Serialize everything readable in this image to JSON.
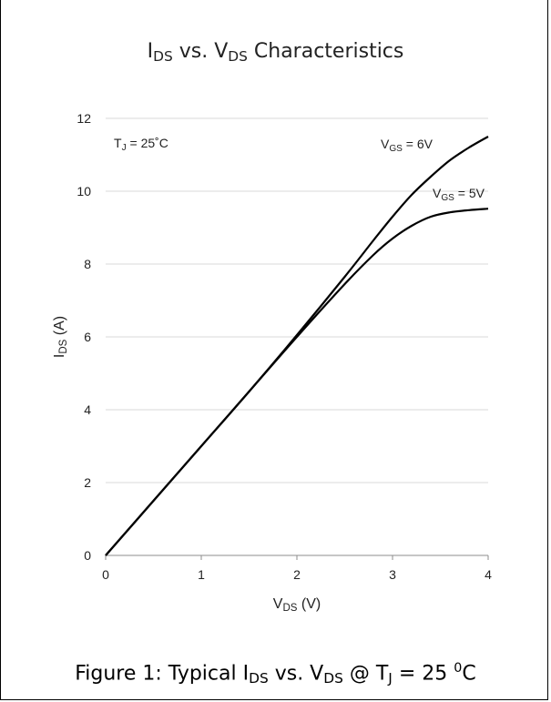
{
  "chart_data": {
    "type": "line",
    "title": {
      "main": "I",
      "sub1": "DS",
      "mid": " vs. V",
      "sub2": "DS",
      "tail": " Characteristics"
    },
    "xlabel": {
      "main": "V",
      "sub": "DS",
      "tail": " (V)"
    },
    "ylabel": {
      "main": "I",
      "sub": "DS",
      "tail": " (A)"
    },
    "xlim": [
      0,
      4
    ],
    "ylim": [
      0,
      12
    ],
    "x_ticks": [
      0,
      1,
      2,
      3,
      4
    ],
    "y_ticks": [
      0,
      2,
      4,
      6,
      8,
      10,
      12
    ],
    "grid": "horizontal",
    "annotation": {
      "main": "T",
      "sub": "J",
      "tail": " = 25˚C"
    },
    "series": [
      {
        "name": "VGS = 6V",
        "label": {
          "main": "V",
          "sub": "GS",
          "tail": " = 6V"
        },
        "x": [
          0,
          0.5,
          1.0,
          1.5,
          2.0,
          2.5,
          2.8,
          3.0,
          3.2,
          3.4,
          3.6,
          3.8,
          4.0
        ],
        "y": [
          0,
          1.5,
          3.0,
          4.5,
          6.05,
          7.65,
          8.65,
          9.3,
          9.9,
          10.4,
          10.85,
          11.2,
          11.5
        ]
      },
      {
        "name": "VGS = 5V",
        "label": {
          "main": "V",
          "sub": "GS",
          "tail": " = 5V"
        },
        "x": [
          0,
          0.5,
          1.0,
          1.5,
          2.0,
          2.5,
          2.8,
          3.0,
          3.2,
          3.4,
          3.6,
          3.8,
          4.0
        ],
        "y": [
          0,
          1.5,
          3.0,
          4.5,
          6.0,
          7.45,
          8.25,
          8.7,
          9.05,
          9.3,
          9.42,
          9.48,
          9.52
        ]
      }
    ]
  },
  "caption": {
    "prefix": "Figure 1: Typical I",
    "sub1": "DS",
    "mid": " vs. V",
    "sub2": "DS",
    "mid2": " @ T",
    "sub3": "J",
    "temp": " = 25 ",
    "sup": "0",
    "unit": "C"
  }
}
